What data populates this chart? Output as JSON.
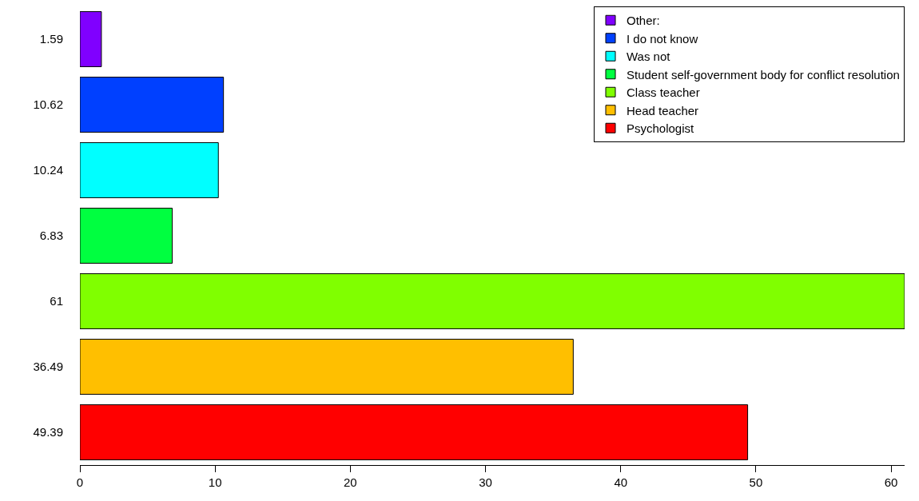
{
  "chart_data": {
    "type": "bar",
    "orientation": "horizontal",
    "categories": [
      "1.59",
      "10.62",
      "10.24",
      "6.83",
      "61",
      "36.49",
      "49.39"
    ],
    "series": [
      {
        "name": "Other:",
        "color": "#8000ff",
        "values": [
          1.59,
          null,
          null,
          null,
          null,
          null,
          null
        ]
      },
      {
        "name": "I do not know",
        "color": "#0040ff",
        "values": [
          null,
          10.62,
          null,
          null,
          null,
          null,
          null
        ]
      },
      {
        "name": "Was not",
        "color": "#00ffff",
        "values": [
          null,
          null,
          10.24,
          null,
          null,
          null,
          null
        ]
      },
      {
        "name": "Student self-government body for conflict resolution",
        "color": "#00ff40",
        "values": [
          null,
          null,
          null,
          6.83,
          null,
          null,
          null
        ]
      },
      {
        "name": "Class teacher",
        "color": "#80ff00",
        "values": [
          null,
          null,
          null,
          null,
          61,
          null,
          null
        ]
      },
      {
        "name": "Head teacher",
        "color": "#ffbf00",
        "values": [
          null,
          null,
          null,
          null,
          null,
          36.49,
          null
        ]
      },
      {
        "name": "Psychologist",
        "color": "#ff0000",
        "values": [
          null,
          null,
          null,
          null,
          null,
          null,
          49.39
        ]
      }
    ],
    "xlim": [
      0,
      61
    ],
    "xticks": [
      0,
      10,
      20,
      30,
      40,
      50,
      60
    ],
    "legend": "top right"
  }
}
